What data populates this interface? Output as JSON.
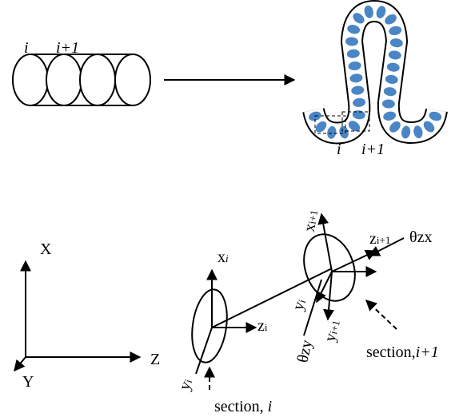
{
  "top": {
    "left_labels": [
      "i",
      "i+1"
    ],
    "right_labels": [
      "i",
      "i+1"
    ]
  },
  "global_axes": {
    "x": "X",
    "z": "Z",
    "y": "Y"
  },
  "section_i": {
    "x": {
      "base": "x",
      "sub": "i"
    },
    "z": {
      "base": "z",
      "sub": "i"
    },
    "y": {
      "base": "y",
      "sub": "i"
    },
    "caption": {
      "text": "section, ",
      "index": "i"
    }
  },
  "section_i1": {
    "x": {
      "base": "x",
      "sub": "i+1"
    },
    "z": {
      "base": "z",
      "sub": "i+1"
    },
    "y_prev": {
      "base": "y",
      "sub": "i"
    },
    "y": {
      "base": "y",
      "sub": "i+1"
    },
    "theta_zx": "θzx",
    "theta_zy": "θzy",
    "caption": {
      "text": "section,",
      "index": "i+1"
    }
  }
}
